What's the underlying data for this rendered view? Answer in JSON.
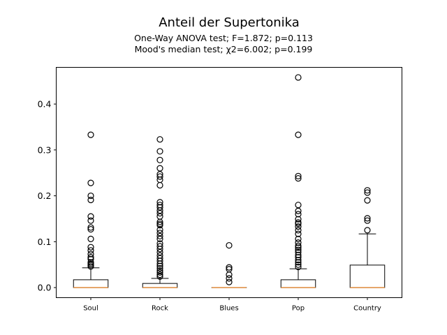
{
  "chart_data": {
    "type": "box",
    "title": "Anteil der Supertonika",
    "subtitle_lines": [
      "One-Way ANOVA test; F=1.872; p=0.113",
      "Mood's median test; χ2=6.002; p=0.199"
    ],
    "xlabel": "",
    "ylabel": "",
    "ylim": [
      -0.022,
      0.48
    ],
    "yticks": [
      0.0,
      0.1,
      0.2,
      0.3,
      0.4
    ],
    "ytick_labels": [
      "0.0",
      "0.1",
      "0.2",
      "0.3",
      "0.4"
    ],
    "grid": false,
    "categories": [
      "Soul",
      "Rock",
      "Blues",
      "Pop",
      "Country"
    ],
    "boxes": [
      {
        "name": "Soul",
        "whisker_low": 0.0,
        "q1": 0.0,
        "median": 0.0,
        "q3": 0.017,
        "whisker_high": 0.043,
        "fliers": [
          0.046,
          0.049,
          0.052,
          0.055,
          0.062,
          0.066,
          0.073,
          0.081,
          0.088,
          0.106,
          0.127,
          0.131,
          0.146,
          0.155,
          0.191,
          0.2,
          0.228,
          0.333
        ]
      },
      {
        "name": "Rock",
        "whisker_low": 0.0,
        "q1": 0.0,
        "median": 0.0,
        "q3": 0.009,
        "whisker_high": 0.02,
        "fliers": [
          0.024,
          0.028,
          0.033,
          0.037,
          0.042,
          0.047,
          0.052,
          0.058,
          0.064,
          0.07,
          0.077,
          0.084,
          0.09,
          0.096,
          0.106,
          0.112,
          0.119,
          0.126,
          0.136,
          0.139,
          0.143,
          0.155,
          0.162,
          0.168,
          0.175,
          0.18,
          0.186,
          0.223,
          0.235,
          0.242,
          0.247,
          0.26,
          0.278,
          0.297,
          0.323
        ]
      },
      {
        "name": "Blues",
        "whisker_low": 0.0,
        "q1": 0.0,
        "median": 0.0,
        "q3": 0.0,
        "whisker_high": 0.0,
        "fliers": [
          0.012,
          0.02,
          0.028,
          0.04,
          0.044,
          0.092
        ]
      },
      {
        "name": "Pop",
        "whisker_low": 0.0,
        "q1": 0.0,
        "median": 0.0,
        "q3": 0.017,
        "whisker_high": 0.041,
        "fliers": [
          0.045,
          0.05,
          0.055,
          0.06,
          0.066,
          0.071,
          0.077,
          0.082,
          0.087,
          0.091,
          0.098,
          0.106,
          0.117,
          0.125,
          0.133,
          0.139,
          0.142,
          0.149,
          0.16,
          0.167,
          0.18,
          0.238,
          0.243,
          0.333,
          0.458
        ]
      },
      {
        "name": "Country",
        "whisker_low": 0.0,
        "q1": 0.0,
        "median": 0.0,
        "q3": 0.049,
        "whisker_high": 0.117,
        "fliers": [
          0.125,
          0.146,
          0.151,
          0.19,
          0.207,
          0.212
        ]
      }
    ]
  },
  "colors": {
    "median": "#e1934a",
    "box": "#000000",
    "background": "#ffffff"
  }
}
